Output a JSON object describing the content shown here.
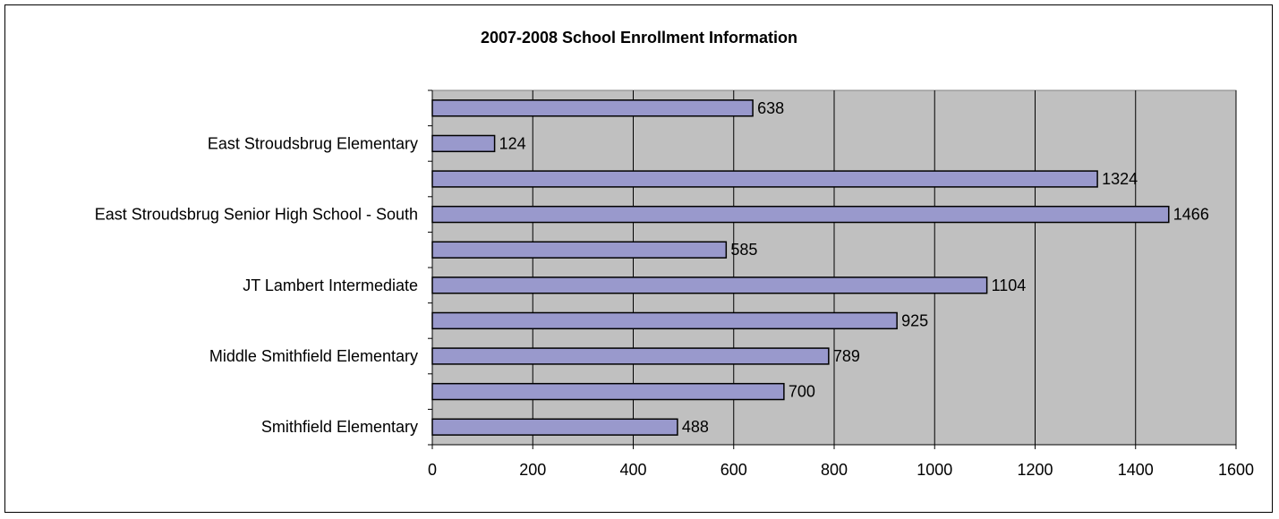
{
  "chart_data": {
    "type": "bar",
    "orientation": "horizontal",
    "title": "2007-2008 School Enrollment Information",
    "xlabel": "",
    "ylabel": "",
    "xlim": [
      0,
      1600
    ],
    "x_ticks": [
      "0",
      "200",
      "400",
      "600",
      "800",
      "1000",
      "1200",
      "1400",
      "1600"
    ],
    "grid": "vertical",
    "legend": "none",
    "categories": [
      "Smithfield Elementary",
      "",
      "Middle Smithfield Elementary",
      "",
      "JT Lambert Intermediate",
      "",
      "East Stroudsbrug Senior High School - South",
      "",
      "East Stroudsbrug Elementary",
      ""
    ],
    "values": [
      488,
      700,
      789,
      925,
      1104,
      585,
      1466,
      1324,
      124,
      638
    ],
    "colors": {
      "bar_fill": "#9999cc",
      "bar_stroke": "#000000",
      "plot_background": "#c0c0c0",
      "gridline": "#000000"
    }
  }
}
